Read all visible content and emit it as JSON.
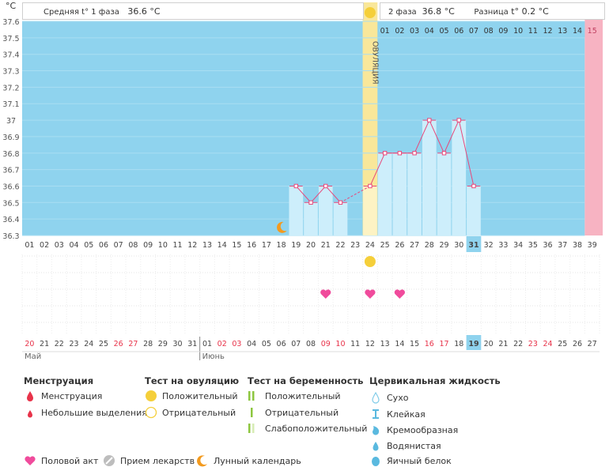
{
  "header": {
    "unit": "°C",
    "phase1_label": "Средняя t° 1 фаза",
    "phase1_value": "36.6 °C",
    "phase2_label": "2 фаза",
    "phase2_value": "36.8 °C",
    "diff_label": "Разница",
    "diff_value": "t°  0.2 °C"
  },
  "y_ticks": [
    "37.6",
    "37.5",
    "37.4",
    "37.3",
    "37.2",
    "37.1",
    "37",
    "36.9",
    "36.8",
    "36.7",
    "36.6",
    "36.5",
    "36.4",
    "36.3"
  ],
  "ovulation_label": "ОВУЛЯЦИЯ",
  "ovulation_day_index": 23,
  "luteal_days": [
    "01",
    "02",
    "03",
    "04",
    "05",
    "06",
    "07",
    "08",
    "09",
    "10",
    "11",
    "12",
    "13",
    "14",
    "15"
  ],
  "cycle_days": [
    "01",
    "02",
    "03",
    "04",
    "05",
    "06",
    "07",
    "08",
    "09",
    "10",
    "11",
    "12",
    "13",
    "14",
    "15",
    "16",
    "17",
    "18",
    "19",
    "20",
    "21",
    "22",
    "23",
    "24",
    "25",
    "26",
    "27",
    "28",
    "29",
    "30",
    "31",
    "32",
    "33",
    "34",
    "35",
    "36",
    "37",
    "38",
    "39"
  ],
  "current_day_index": 30,
  "dates": [
    "20",
    "21",
    "22",
    "23",
    "24",
    "25",
    "26",
    "27",
    "28",
    "29",
    "30",
    "31",
    "01",
    "02",
    "03",
    "04",
    "05",
    "06",
    "07",
    "08",
    "09",
    "10",
    "11",
    "12",
    "13",
    "14",
    "15",
    "16",
    "17",
    "18",
    "19",
    "20",
    "21",
    "22",
    "23",
    "24",
    "25",
    "26",
    "27"
  ],
  "red_date_indices": [
    0,
    6,
    7,
    13,
    14,
    20,
    21,
    27,
    28,
    34,
    35
  ],
  "months": {
    "first": "Май",
    "second": "Июнь",
    "second_start_index": 12
  },
  "chart_data": {
    "type": "line",
    "x_day_index": [
      18,
      19,
      20,
      21,
      22,
      23,
      24,
      25,
      26,
      27,
      28,
      29,
      30
    ],
    "y": [
      36.6,
      36.5,
      36.6,
      36.5,
      null,
      36.6,
      36.8,
      36.8,
      36.8,
      37.0,
      36.8,
      37.0,
      36.6
    ],
    "ylim": [
      36.3,
      37.6
    ],
    "ylabel": "°C"
  },
  "markers": {
    "moon_day_index": 17,
    "ovulation_test_positive_day_index": 23,
    "intercourse_day_indices": [
      20,
      23,
      25
    ]
  },
  "legend": {
    "menstruation": {
      "title": "Менструация",
      "items": [
        "Менструация",
        "Небольшие выделения"
      ]
    },
    "ovulation_test": {
      "title": "Тест на овуляцию",
      "items": [
        "Положительный",
        "Отрицательный"
      ]
    },
    "pregnancy_test": {
      "title": "Тест на беременность",
      "items": [
        "Положительный",
        "Отрицательный",
        "Слабоположительный"
      ]
    },
    "cervical": {
      "title": "Цервикальная жидкость",
      "items": [
        "Сухо",
        "Клейкая",
        "Кремообразная",
        "Водянистая",
        "Яичный белок"
      ]
    },
    "bottom": [
      "Половой акт",
      "Прием лекарств",
      "Лунный календарь"
    ]
  },
  "colors": {
    "bg_blue": "#8fd3ee",
    "bar_fill": "#cdeefb",
    "ovulation_col": "#f9e79a",
    "pink": "#f7b3c2",
    "line": "#e8477a",
    "heart": "#f04b9c",
    "sun": "#f5cf3a",
    "current_day": "#8fd3ee"
  }
}
